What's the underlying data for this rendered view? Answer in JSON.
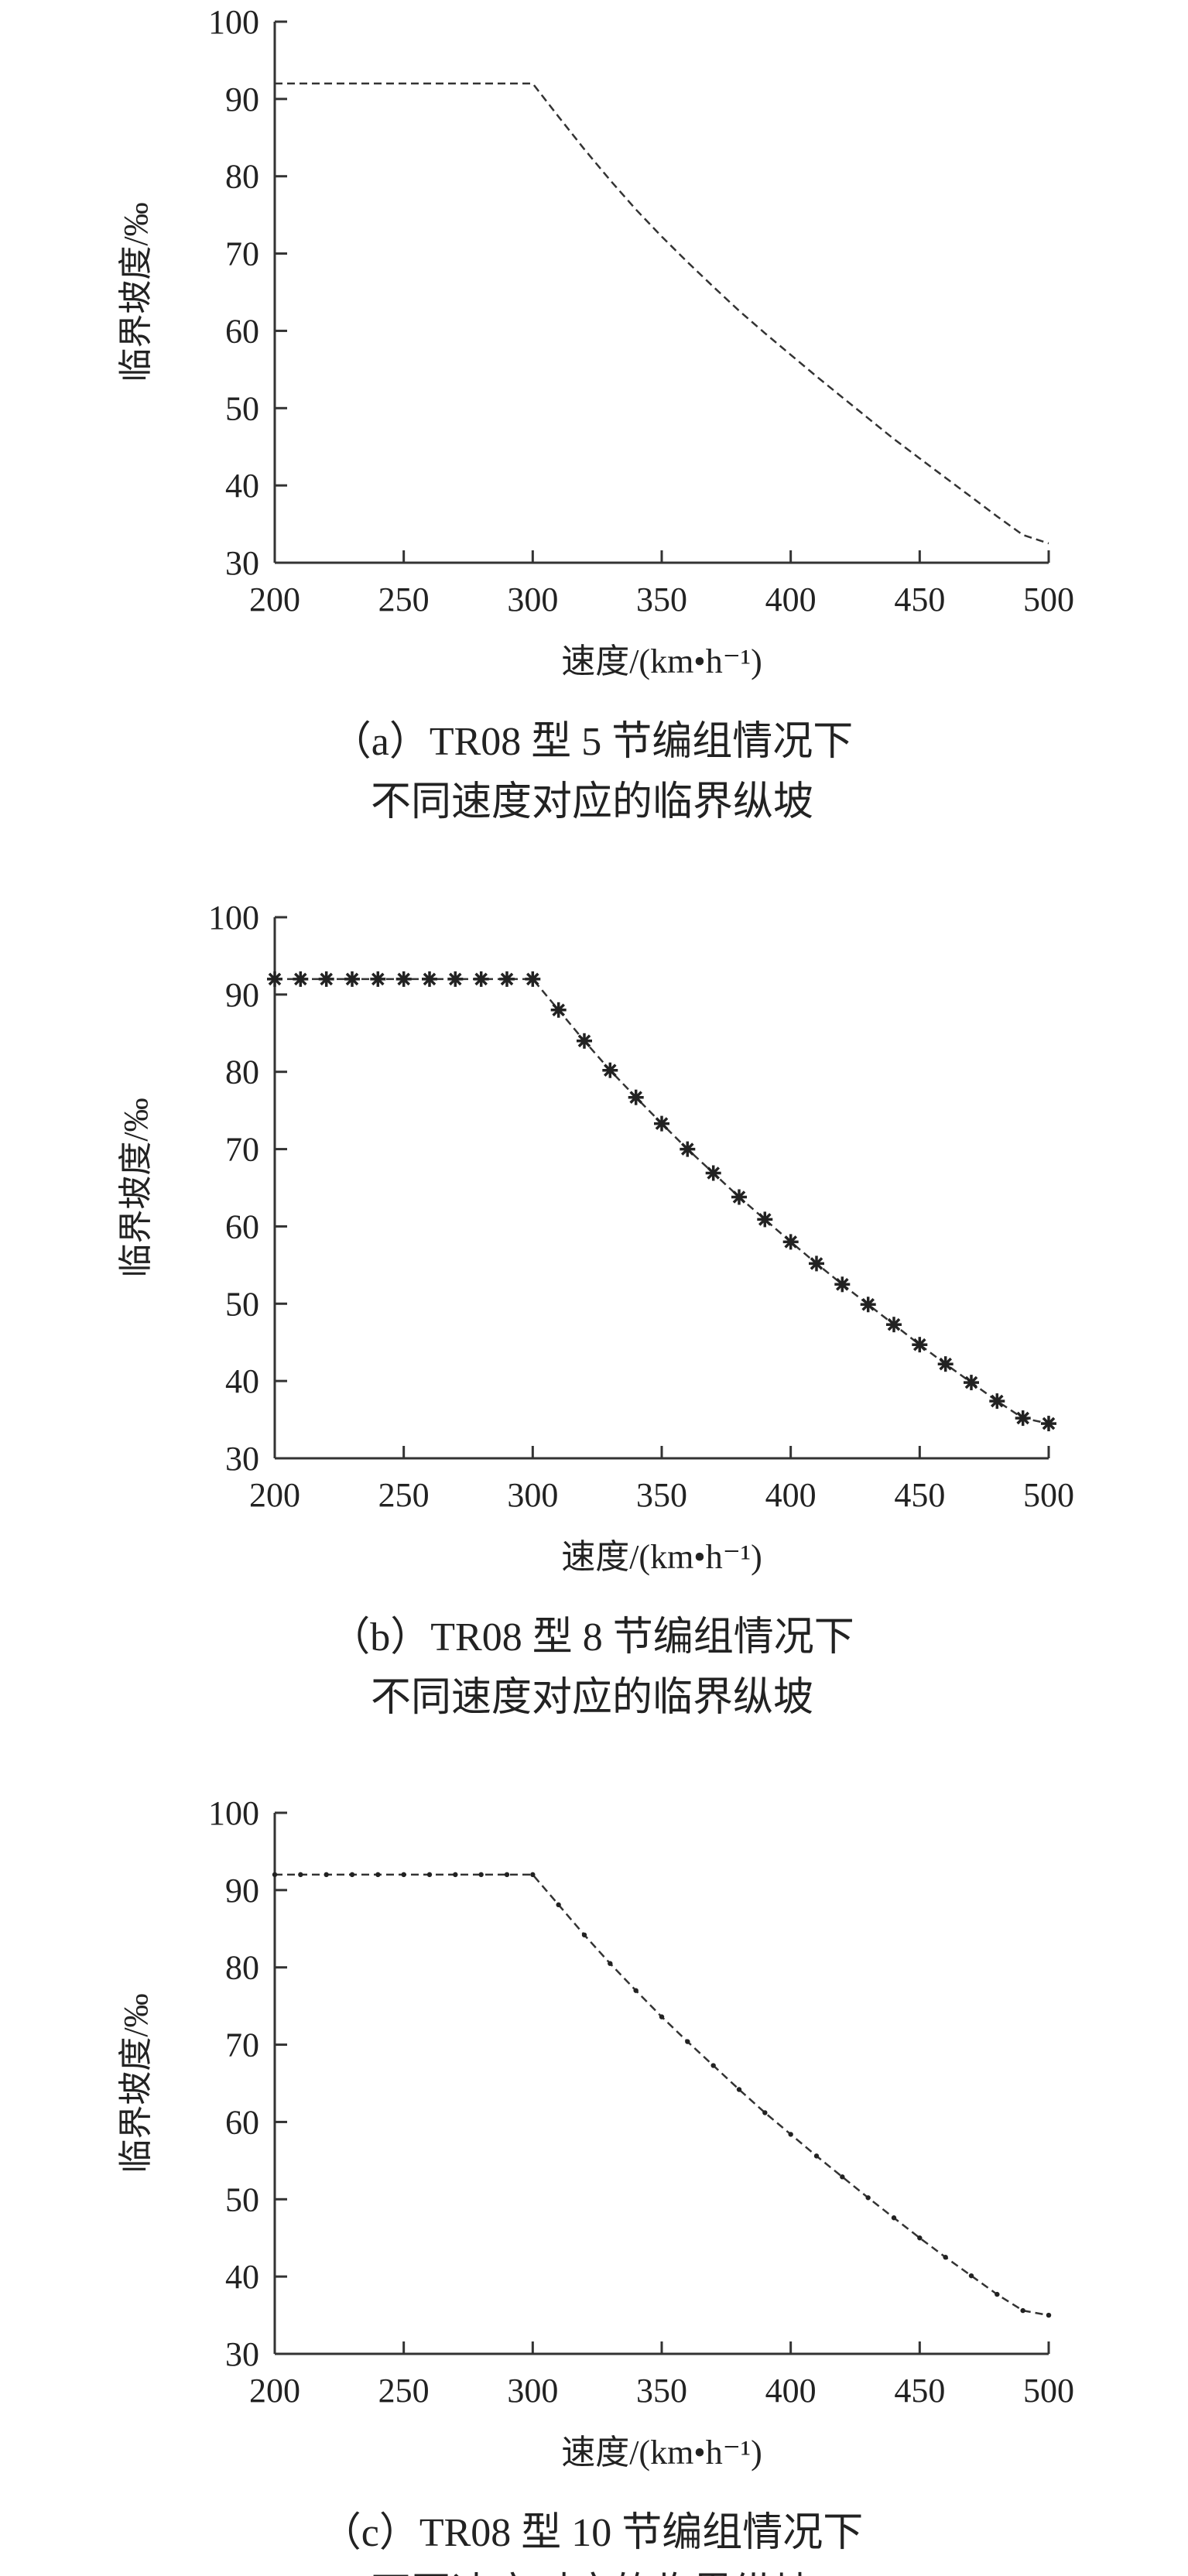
{
  "chart_data": [
    {
      "type": "line",
      "xlabel": "速度/(km•h⁻¹)",
      "ylabel": "临界坡度/‰",
      "xlim": [
        200,
        500
      ],
      "ylim": [
        30,
        100
      ],
      "xticks": [
        "200",
        "250",
        "300",
        "350",
        "400",
        "450",
        "500"
      ],
      "yticks": [
        "30",
        "40",
        "50",
        "60",
        "70",
        "80",
        "90",
        "100"
      ],
      "grid": false,
      "marker": "none",
      "caption": [
        "（a）TR08 型 5 节编组情况下",
        "不同速度对应的临界纵坡"
      ],
      "x": [
        200,
        210,
        220,
        230,
        240,
        250,
        260,
        270,
        280,
        290,
        300,
        310,
        320,
        330,
        340,
        350,
        360,
        370,
        380,
        390,
        400,
        410,
        420,
        430,
        440,
        450,
        460,
        470,
        480,
        490,
        500
      ],
      "values": [
        92,
        92,
        92,
        92,
        92,
        92,
        92,
        92,
        92,
        92,
        92,
        87.7,
        83.5,
        79.5,
        75.7,
        72.2,
        68.9,
        65.7,
        62.6,
        59.7,
        56.9,
        54.1,
        51.4,
        48.7,
        46.0,
        43.5,
        41.0,
        38.5,
        36.0,
        33.6,
        32.5
      ]
    },
    {
      "type": "line",
      "xlabel": "速度/(km•h⁻¹)",
      "ylabel": "临界坡度/‰",
      "xlim": [
        200,
        500
      ],
      "ylim": [
        30,
        100
      ],
      "xticks": [
        "200",
        "250",
        "300",
        "350",
        "400",
        "450",
        "500"
      ],
      "yticks": [
        "30",
        "40",
        "50",
        "60",
        "70",
        "80",
        "90",
        "100"
      ],
      "grid": false,
      "marker": "asterisk",
      "caption": [
        "（b）TR08 型 8 节编组情况下",
        "不同速度对应的临界纵坡"
      ],
      "x": [
        200,
        210,
        220,
        230,
        240,
        250,
        260,
        270,
        280,
        290,
        300,
        310,
        320,
        330,
        340,
        350,
        360,
        370,
        380,
        390,
        400,
        410,
        420,
        430,
        440,
        450,
        460,
        470,
        480,
        490,
        500
      ],
      "values": [
        92,
        92,
        92,
        92,
        92,
        92,
        92,
        92,
        92,
        92,
        92,
        88.0,
        84.0,
        80.2,
        76.7,
        73.3,
        70.0,
        66.9,
        63.8,
        60.9,
        58.0,
        55.2,
        52.5,
        49.9,
        47.3,
        44.7,
        42.2,
        39.8,
        37.4,
        35.2,
        34.5
      ]
    },
    {
      "type": "line",
      "xlabel": "速度/(km•h⁻¹)",
      "ylabel": "临界坡度/‰",
      "xlim": [
        200,
        500
      ],
      "ylim": [
        30,
        100
      ],
      "xticks": [
        "200",
        "250",
        "300",
        "350",
        "400",
        "450",
        "500"
      ],
      "yticks": [
        "30",
        "40",
        "50",
        "60",
        "70",
        "80",
        "90",
        "100"
      ],
      "grid": false,
      "marker": "dot",
      "caption": [
        "（c）TR08 型 10 节编组情况下",
        "不同速度对应的临界纵坡"
      ],
      "x": [
        200,
        210,
        220,
        230,
        240,
        250,
        260,
        270,
        280,
        290,
        300,
        310,
        320,
        330,
        340,
        350,
        360,
        370,
        380,
        390,
        400,
        410,
        420,
        430,
        440,
        450,
        460,
        470,
        480,
        490,
        500
      ],
      "values": [
        92,
        92,
        92,
        92,
        92,
        92,
        92,
        92,
        92,
        92,
        92,
        88.1,
        84.2,
        80.5,
        77.0,
        73.6,
        70.4,
        67.3,
        64.2,
        61.2,
        58.4,
        55.6,
        52.9,
        50.2,
        47.6,
        45.0,
        42.5,
        40.1,
        37.7,
        35.6,
        35.0
      ]
    }
  ]
}
